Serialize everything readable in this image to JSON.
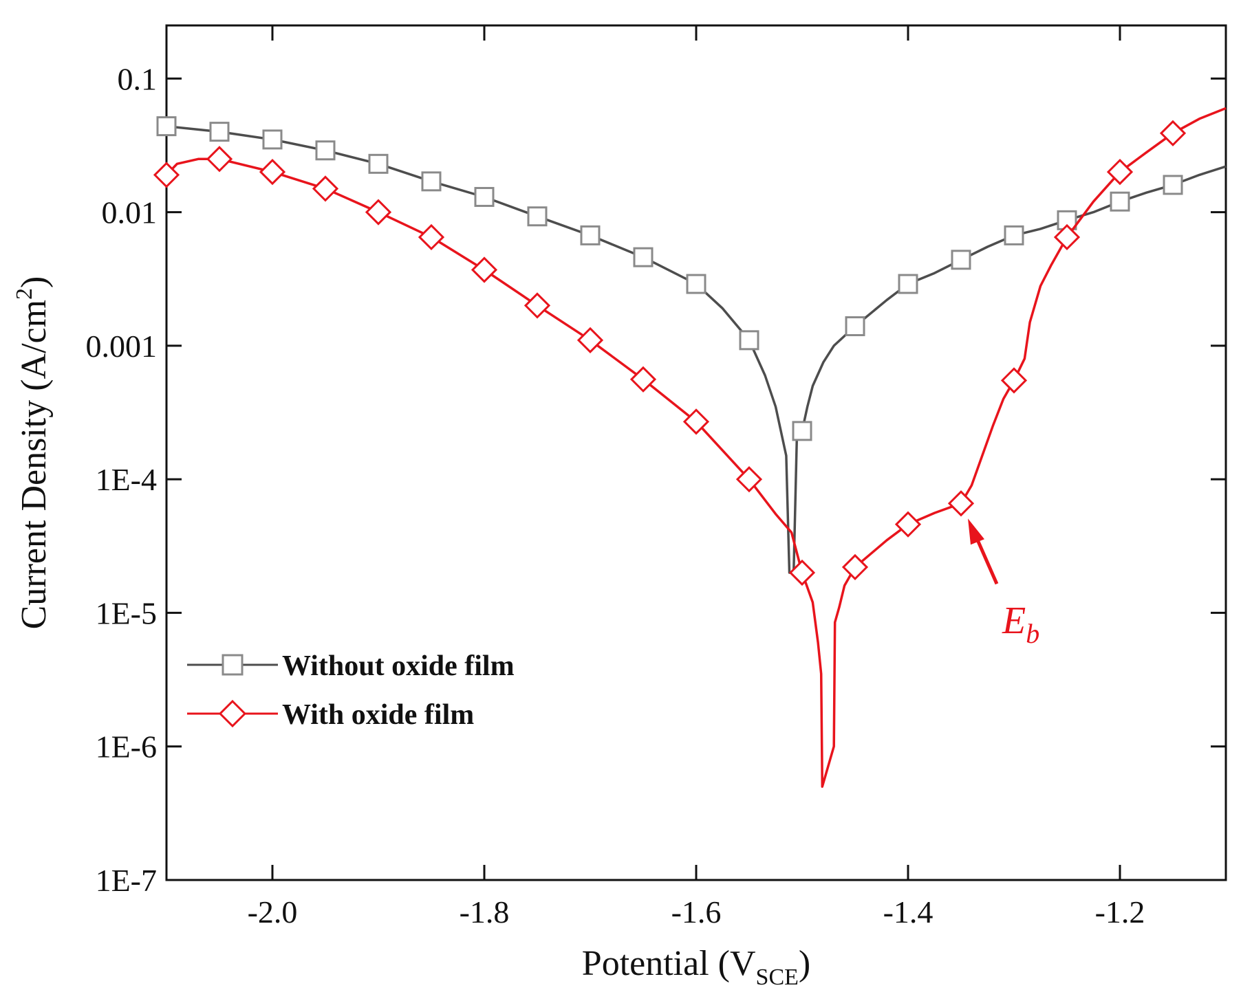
{
  "chart_data": {
    "type": "line",
    "title": "",
    "xlabel": "Potential (V",
    "xlabel_sub": "SCE",
    "xlabel_close": ")",
    "ylabel": "Current Density (A/cm",
    "ylabel_sup": "2",
    "ylabel_close": ")",
    "yscale": "log",
    "xlim": [
      -2.1,
      -1.1
    ],
    "ylim": [
      1e-07,
      0.25
    ],
    "x_ticks": [
      {
        "value": -2.0,
        "label": "-2.0"
      },
      {
        "value": -1.8,
        "label": "-1.8"
      },
      {
        "value": -1.6,
        "label": "-1.6"
      },
      {
        "value": -1.4,
        "label": "-1.4"
      },
      {
        "value": -1.2,
        "label": "-1.2"
      }
    ],
    "y_ticks": [
      {
        "value": 0.1,
        "label": "0.1"
      },
      {
        "value": 0.01,
        "label": "0.01"
      },
      {
        "value": 0.001,
        "label": "0.001"
      },
      {
        "value": 0.0001,
        "label": "1E-4"
      },
      {
        "value": 1e-05,
        "label": "1E-5"
      },
      {
        "value": 1e-06,
        "label": "1E-6"
      },
      {
        "value": 1e-07,
        "label": "1E-7"
      }
    ],
    "legend_position": "bottom-left",
    "series": [
      {
        "name": "Without oxide film",
        "color": "#4d4d4d",
        "marker": "square",
        "line": [
          [
            -2.1,
            0.044
          ],
          [
            -2.05,
            0.04
          ],
          [
            -2.0,
            0.035
          ],
          [
            -1.95,
            0.029
          ],
          [
            -1.9,
            0.023
          ],
          [
            -1.85,
            0.017
          ],
          [
            -1.8,
            0.013
          ],
          [
            -1.75,
            0.0093
          ],
          [
            -1.7,
            0.0067
          ],
          [
            -1.65,
            0.0046
          ],
          [
            -1.6,
            0.0029
          ],
          [
            -1.575,
            0.0019
          ],
          [
            -1.55,
            0.0011
          ],
          [
            -1.535,
            0.0006
          ],
          [
            -1.525,
            0.00035
          ],
          [
            -1.515,
            0.00015
          ],
          [
            -1.512,
            2e-05
          ],
          [
            -1.508,
            2e-05
          ],
          [
            -1.505,
            0.0002
          ],
          [
            -1.5,
            0.00023
          ],
          [
            -1.495,
            0.00035
          ],
          [
            -1.49,
            0.0005
          ],
          [
            -1.48,
            0.00075
          ],
          [
            -1.47,
            0.001
          ],
          [
            -1.45,
            0.0014
          ],
          [
            -1.42,
            0.0022
          ],
          [
            -1.4,
            0.0029
          ],
          [
            -1.375,
            0.0035
          ],
          [
            -1.35,
            0.0044
          ],
          [
            -1.325,
            0.0055
          ],
          [
            -1.3,
            0.0067
          ],
          [
            -1.275,
            0.0075
          ],
          [
            -1.25,
            0.0087
          ],
          [
            -1.225,
            0.01
          ],
          [
            -1.2,
            0.012
          ],
          [
            -1.175,
            0.014
          ],
          [
            -1.15,
            0.016
          ],
          [
            -1.125,
            0.019
          ],
          [
            -1.1,
            0.022
          ]
        ],
        "markers": [
          [
            -2.1,
            0.044
          ],
          [
            -2.05,
            0.04
          ],
          [
            -2.0,
            0.035
          ],
          [
            -1.95,
            0.029
          ],
          [
            -1.9,
            0.023
          ],
          [
            -1.85,
            0.017
          ],
          [
            -1.8,
            0.013
          ],
          [
            -1.75,
            0.0093
          ],
          [
            -1.7,
            0.0067
          ],
          [
            -1.65,
            0.0046
          ],
          [
            -1.6,
            0.0029
          ],
          [
            -1.55,
            0.0011
          ],
          [
            -1.5,
            0.00023
          ],
          [
            -1.45,
            0.0014
          ],
          [
            -1.4,
            0.0029
          ],
          [
            -1.35,
            0.0044
          ],
          [
            -1.3,
            0.0067
          ],
          [
            -1.25,
            0.0087
          ],
          [
            -1.2,
            0.012
          ],
          [
            -1.15,
            0.016
          ]
        ]
      },
      {
        "name": "With oxide film",
        "color": "#e8141c",
        "marker": "diamond",
        "line": [
          [
            -2.1,
            0.019
          ],
          [
            -2.09,
            0.023
          ],
          [
            -2.07,
            0.025
          ],
          [
            -2.05,
            0.025
          ],
          [
            -2.0,
            0.02
          ],
          [
            -1.95,
            0.015
          ],
          [
            -1.9,
            0.01
          ],
          [
            -1.85,
            0.0065
          ],
          [
            -1.8,
            0.0037
          ],
          [
            -1.75,
            0.002
          ],
          [
            -1.7,
            0.0011
          ],
          [
            -1.65,
            0.00056
          ],
          [
            -1.6,
            0.00027
          ],
          [
            -1.55,
            0.0001
          ],
          [
            -1.525,
            5.5e-05
          ],
          [
            -1.51,
            4e-05
          ],
          [
            -1.5,
            2e-05
          ],
          [
            -1.49,
            1.2e-05
          ],
          [
            -1.485,
            6e-06
          ],
          [
            -1.482,
            3.5e-06
          ],
          [
            -1.481,
            5e-07
          ],
          [
            -1.47,
            1e-06
          ],
          [
            -1.469,
            8.5e-06
          ],
          [
            -1.465,
            1.1e-05
          ],
          [
            -1.46,
            1.6e-05
          ],
          [
            -1.45,
            2.2e-05
          ],
          [
            -1.42,
            3.5e-05
          ],
          [
            -1.4,
            4.6e-05
          ],
          [
            -1.375,
            5.6e-05
          ],
          [
            -1.35,
            6.6e-05
          ],
          [
            -1.34,
            9e-05
          ],
          [
            -1.33,
            0.00015
          ],
          [
            -1.32,
            0.00025
          ],
          [
            -1.31,
            0.0004
          ],
          [
            -1.3,
            0.00055
          ],
          [
            -1.29,
            0.0008
          ],
          [
            -1.285,
            0.0015
          ],
          [
            -1.275,
            0.0028
          ],
          [
            -1.265,
            0.004
          ],
          [
            -1.25,
            0.0065
          ],
          [
            -1.225,
            0.012
          ],
          [
            -1.2,
            0.02
          ],
          [
            -1.175,
            0.028
          ],
          [
            -1.15,
            0.039
          ],
          [
            -1.125,
            0.05
          ],
          [
            -1.1,
            0.06
          ]
        ],
        "markers": [
          [
            -2.1,
            0.019
          ],
          [
            -2.05,
            0.025
          ],
          [
            -2.0,
            0.02
          ],
          [
            -1.95,
            0.015
          ],
          [
            -1.9,
            0.01
          ],
          [
            -1.85,
            0.0065
          ],
          [
            -1.8,
            0.0037
          ],
          [
            -1.75,
            0.002
          ],
          [
            -1.7,
            0.0011
          ],
          [
            -1.65,
            0.00056
          ],
          [
            -1.6,
            0.00027
          ],
          [
            -1.55,
            0.0001
          ],
          [
            -1.5,
            2e-05
          ],
          [
            -1.45,
            2.2e-05
          ],
          [
            -1.4,
            4.6e-05
          ],
          [
            -1.35,
            6.6e-05
          ],
          [
            -1.3,
            0.00055
          ],
          [
            -1.25,
            0.0065
          ],
          [
            -1.2,
            0.02
          ],
          [
            -1.15,
            0.039
          ]
        ]
      }
    ],
    "annotations": [
      {
        "text": "E",
        "sub": "b",
        "points_to": [
          -1.35,
          6.6e-05
        ],
        "color": "#e8141c"
      }
    ]
  }
}
